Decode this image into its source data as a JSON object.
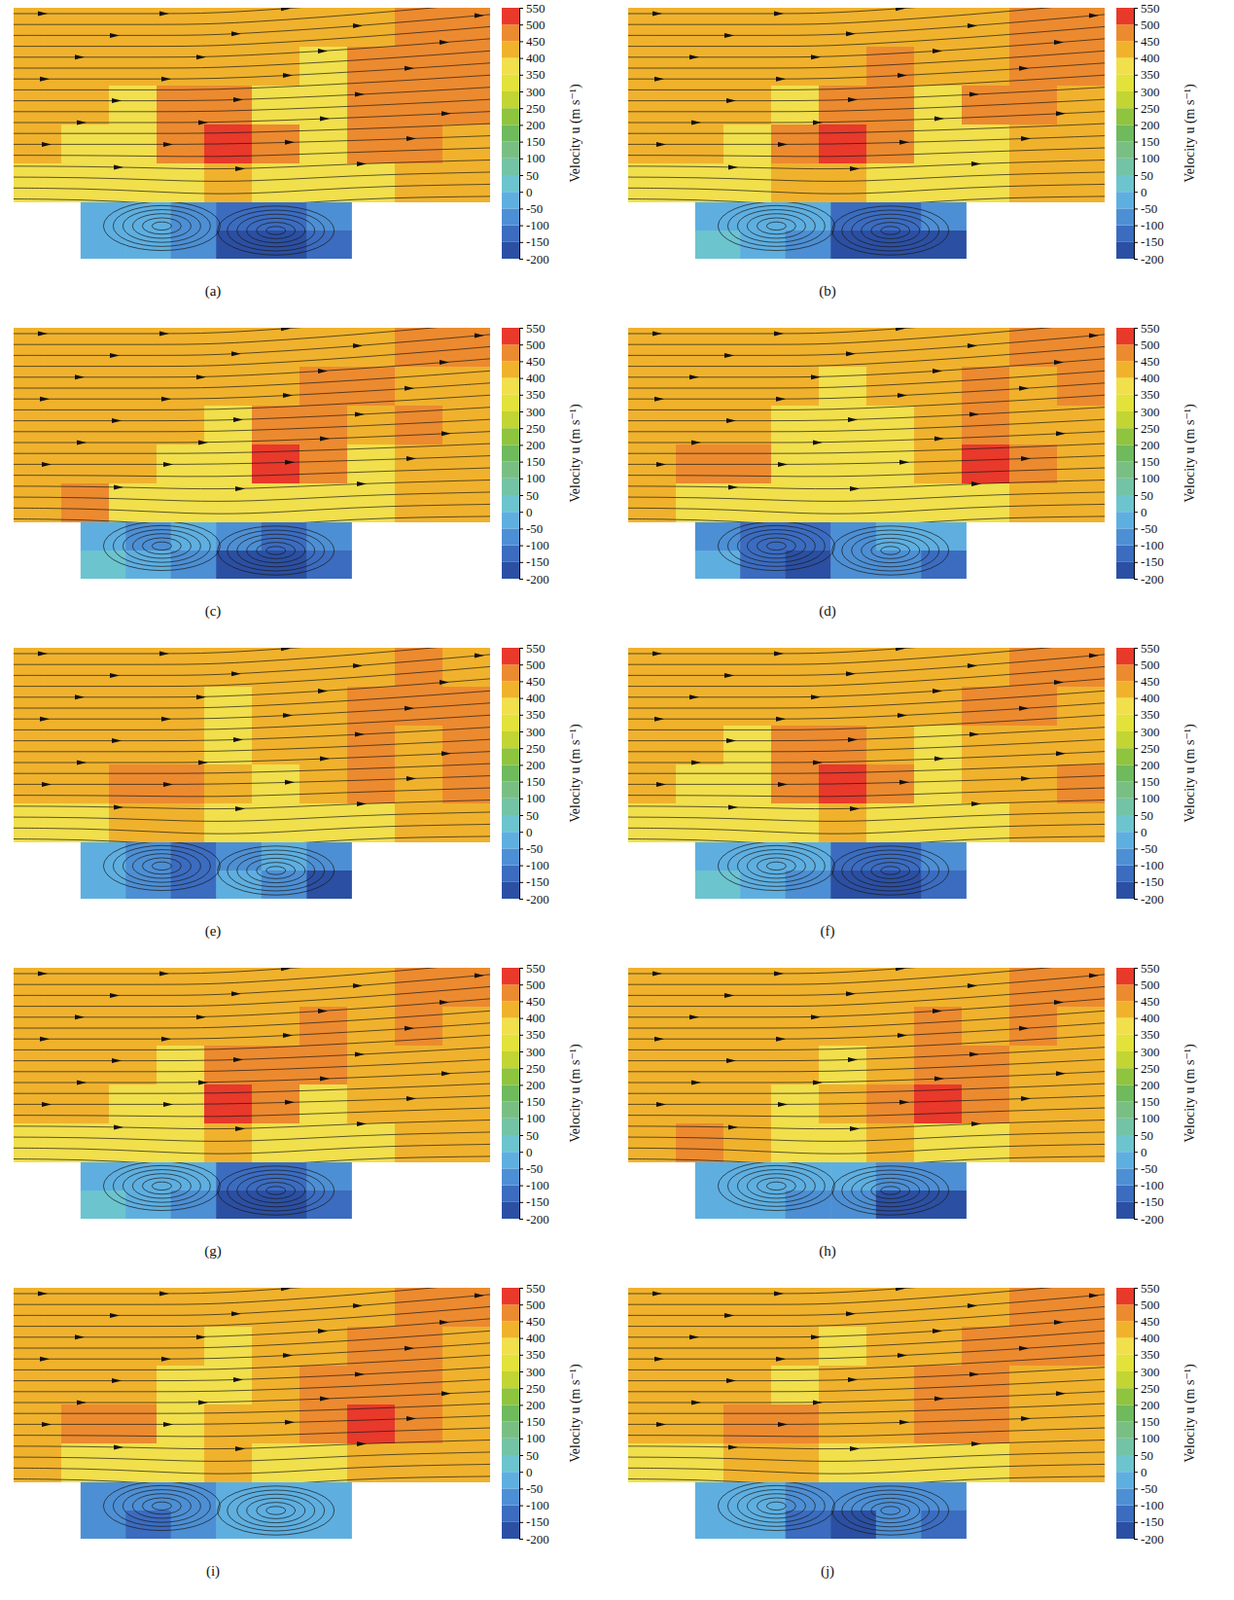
{
  "chart_data": [
    {
      "type": "heatmap",
      "title": "(a)",
      "colorbar_label": "Velocity u (m s⁻¹)",
      "colorbar_range": [
        -200,
        550
      ],
      "colorbar_ticks": [
        -200,
        -150,
        -100,
        -50,
        0,
        50,
        100,
        150,
        200,
        250,
        300,
        350,
        400,
        450,
        500,
        550
      ],
      "colors": [
        "#2b4fa2",
        "#3b6cc0",
        "#4d8fd4",
        "#5eafe0",
        "#6cc4cf",
        "#73c3a6",
        "#79bf84",
        "#6fba5c",
        "#8fc43e",
        "#c2d532",
        "#e2e23a",
        "#f1df4c",
        "#f0b22d",
        "#ec8a2f",
        "#e8392b"
      ],
      "channel_cells": [
        [
          430,
          430,
          430,
          430,
          430,
          430,
          430,
          440,
          470,
          470
        ],
        [
          430,
          430,
          430,
          430,
          430,
          430,
          380,
          470,
          470,
          470
        ],
        [
          430,
          430,
          380,
          460,
          470,
          380,
          380,
          470,
          480,
          470
        ],
        [
          430,
          380,
          380,
          470,
          520,
          470,
          380,
          460,
          470,
          430
        ],
        [
          380,
          370,
          360,
          380,
          420,
          380,
          360,
          380,
          400,
          400
        ]
      ],
      "cavity_cells": [
        [
          -20,
          -30,
          -60,
          -120,
          -130,
          -100
        ],
        [
          -10,
          -20,
          -80,
          -170,
          -180,
          -150
        ]
      ]
    },
    {
      "type": "heatmap",
      "title": "(b)",
      "colorbar_label": "Velocity u (m s⁻¹)",
      "colorbar_range": [
        -200,
        550
      ],
      "colorbar_ticks": [
        -200,
        -150,
        -100,
        -50,
        0,
        50,
        100,
        150,
        200,
        250,
        300,
        350,
        400,
        450,
        500,
        550
      ],
      "colors": [
        "#2b4fa2",
        "#3b6cc0",
        "#4d8fd4",
        "#5eafe0",
        "#6cc4cf",
        "#73c3a6",
        "#79bf84",
        "#6fba5c",
        "#8fc43e",
        "#c2d532",
        "#e2e23a",
        "#f1df4c",
        "#f0b22d",
        "#ec8a2f",
        "#e8392b"
      ],
      "channel_cells": [
        [
          430,
          430,
          430,
          430,
          430,
          430,
          430,
          430,
          450,
          470
        ],
        [
          430,
          430,
          430,
          430,
          430,
          460,
          430,
          430,
          470,
          470
        ],
        [
          430,
          430,
          430,
          380,
          470,
          470,
          380,
          470,
          470,
          430
        ],
        [
          430,
          430,
          380,
          470,
          520,
          470,
          380,
          380,
          430,
          430
        ],
        [
          380,
          380,
          360,
          400,
          400,
          380,
          360,
          380,
          400,
          400
        ]
      ],
      "cavity_cells": [
        [
          -20,
          -30,
          -50,
          -110,
          -130,
          -90
        ],
        [
          0,
          -20,
          -100,
          -180,
          -190,
          -160
        ]
      ]
    },
    {
      "type": "heatmap",
      "title": "(c)",
      "colorbar_label": "Velocity u (m s⁻¹)",
      "colorbar_range": [
        -200,
        550
      ],
      "colorbar_ticks": [
        -200,
        -150,
        -100,
        -50,
        0,
        50,
        100,
        150,
        200,
        250,
        300,
        350,
        400,
        450,
        500,
        550
      ],
      "colors": [
        "#2b4fa2",
        "#3b6cc0",
        "#4d8fd4",
        "#5eafe0",
        "#6cc4cf",
        "#73c3a6",
        "#79bf84",
        "#6fba5c",
        "#8fc43e",
        "#c2d532",
        "#e2e23a",
        "#f1df4c",
        "#f0b22d",
        "#ec8a2f",
        "#e8392b"
      ],
      "channel_cells": [
        [
          430,
          430,
          430,
          430,
          430,
          430,
          430,
          430,
          470,
          470
        ],
        [
          430,
          430,
          430,
          430,
          430,
          430,
          470,
          470,
          430,
          430
        ],
        [
          430,
          430,
          430,
          430,
          380,
          470,
          470,
          430,
          460,
          430
        ],
        [
          430,
          430,
          430,
          380,
          380,
          520,
          470,
          380,
          430,
          430
        ],
        [
          430,
          460,
          380,
          380,
          380,
          380,
          380,
          380,
          400,
          400
        ]
      ],
      "cavity_cells": [
        [
          -40,
          -70,
          -40,
          -60,
          -120,
          -80
        ],
        [
          0,
          -30,
          -80,
          -170,
          -190,
          -120
        ]
      ]
    },
    {
      "type": "heatmap",
      "title": "(d)",
      "colorbar_label": "Velocity u (m s⁻¹)",
      "colorbar_range": [
        -200,
        550
      ],
      "colorbar_ticks": [
        -200,
        -150,
        -100,
        -50,
        0,
        50,
        100,
        150,
        200,
        250,
        300,
        350,
        400,
        450,
        500,
        550
      ],
      "colors": [
        "#2b4fa2",
        "#3b6cc0",
        "#4d8fd4",
        "#5eafe0",
        "#6cc4cf",
        "#73c3a6",
        "#79bf84",
        "#6fba5c",
        "#8fc43e",
        "#c2d532",
        "#e2e23a",
        "#f1df4c",
        "#f0b22d",
        "#ec8a2f",
        "#e8392b"
      ],
      "channel_cells": [
        [
          430,
          430,
          430,
          430,
          430,
          430,
          430,
          440,
          470,
          470
        ],
        [
          430,
          430,
          430,
          430,
          380,
          430,
          430,
          470,
          430,
          470
        ],
        [
          430,
          430,
          430,
          380,
          380,
          380,
          430,
          470,
          430,
          430
        ],
        [
          430,
          470,
          470,
          380,
          370,
          380,
          440,
          520,
          460,
          430
        ],
        [
          400,
          380,
          380,
          370,
          380,
          380,
          380,
          380,
          400,
          400
        ]
      ],
      "cavity_cells": [
        [
          -60,
          -120,
          -110,
          -70,
          -40,
          -30
        ],
        [
          -40,
          -150,
          -170,
          -90,
          -60,
          -140
        ]
      ]
    },
    {
      "type": "heatmap",
      "title": "(e)",
      "colorbar_label": "Velocity u (m s⁻¹)",
      "colorbar_range": [
        -200,
        550
      ],
      "colorbar_ticks": [
        -200,
        -150,
        -100,
        -50,
        0,
        50,
        100,
        150,
        200,
        250,
        300,
        350,
        400,
        450,
        500,
        550
      ],
      "colors": [
        "#2b4fa2",
        "#3b6cc0",
        "#4d8fd4",
        "#5eafe0",
        "#6cc4cf",
        "#73c3a6",
        "#79bf84",
        "#6fba5c",
        "#8fc43e",
        "#c2d532",
        "#e2e23a",
        "#f1df4c",
        "#f0b22d",
        "#ec8a2f",
        "#e8392b"
      ],
      "channel_cells": [
        [
          430,
          430,
          430,
          430,
          430,
          430,
          430,
          430,
          470,
          430
        ],
        [
          430,
          430,
          430,
          430,
          380,
          430,
          430,
          470,
          470,
          470
        ],
        [
          430,
          430,
          430,
          430,
          380,
          430,
          430,
          470,
          430,
          470
        ],
        [
          430,
          430,
          460,
          470,
          430,
          380,
          430,
          470,
          440,
          470
        ],
        [
          380,
          380,
          400,
          400,
          380,
          360,
          370,
          380,
          400,
          400
        ]
      ],
      "cavity_cells": [
        [
          -40,
          -90,
          -110,
          -70,
          -30,
          -60
        ],
        [
          -20,
          -100,
          -140,
          -40,
          -60,
          -170
        ]
      ]
    },
    {
      "type": "heatmap",
      "title": "(f)",
      "colorbar_label": "Velocity u (m s⁻¹)",
      "colorbar_range": [
        -200,
        550
      ],
      "colorbar_ticks": [
        -200,
        -150,
        -100,
        -50,
        0,
        50,
        100,
        150,
        200,
        250,
        300,
        350,
        400,
        450,
        500,
        550
      ],
      "colors": [
        "#2b4fa2",
        "#3b6cc0",
        "#4d8fd4",
        "#5eafe0",
        "#6cc4cf",
        "#73c3a6",
        "#79bf84",
        "#6fba5c",
        "#8fc43e",
        "#c2d532",
        "#e2e23a",
        "#f1df4c",
        "#f0b22d",
        "#ec8a2f",
        "#e8392b"
      ],
      "channel_cells": [
        [
          430,
          430,
          430,
          430,
          430,
          430,
          430,
          430,
          460,
          470
        ],
        [
          430,
          430,
          430,
          430,
          430,
          430,
          430,
          470,
          470,
          430
        ],
        [
          430,
          430,
          380,
          460,
          470,
          430,
          380,
          430,
          430,
          430
        ],
        [
          430,
          380,
          380,
          470,
          520,
          470,
          380,
          430,
          430,
          460
        ],
        [
          380,
          370,
          370,
          380,
          420,
          380,
          360,
          380,
          400,
          400
        ]
      ],
      "cavity_cells": [
        [
          -10,
          -20,
          -40,
          -110,
          -130,
          -90
        ],
        [
          0,
          -10,
          -100,
          -180,
          -180,
          -150
        ]
      ]
    },
    {
      "type": "heatmap",
      "title": "(g)",
      "colorbar_label": "Velocity u (m s⁻¹)",
      "colorbar_range": [
        -200,
        550
      ],
      "colorbar_ticks": [
        -200,
        -150,
        -100,
        -50,
        0,
        50,
        100,
        150,
        200,
        250,
        300,
        350,
        400,
        450,
        500,
        550
      ],
      "colors": [
        "#2b4fa2",
        "#3b6cc0",
        "#4d8fd4",
        "#5eafe0",
        "#6cc4cf",
        "#73c3a6",
        "#79bf84",
        "#6fba5c",
        "#8fc43e",
        "#c2d532",
        "#e2e23a",
        "#f1df4c",
        "#f0b22d",
        "#ec8a2f",
        "#e8392b"
      ],
      "channel_cells": [
        [
          430,
          430,
          430,
          430,
          430,
          430,
          430,
          430,
          450,
          470
        ],
        [
          430,
          430,
          430,
          430,
          430,
          430,
          470,
          430,
          470,
          430
        ],
        [
          430,
          430,
          430,
          380,
          470,
          470,
          470,
          430,
          430,
          430
        ],
        [
          430,
          430,
          380,
          380,
          520,
          470,
          380,
          430,
          430,
          430
        ],
        [
          380,
          380,
          370,
          380,
          400,
          380,
          370,
          380,
          400,
          400
        ]
      ],
      "cavity_cells": [
        [
          -20,
          -20,
          -50,
          -110,
          -120,
          -100
        ],
        [
          0,
          -10,
          -90,
          -170,
          -190,
          -150
        ]
      ]
    },
    {
      "type": "heatmap",
      "title": "(h)",
      "colorbar_label": "Velocity u (m s⁻¹)",
      "colorbar_range": [
        -200,
        550
      ],
      "colorbar_ticks": [
        -200,
        -150,
        -100,
        -50,
        0,
        50,
        100,
        150,
        200,
        250,
        300,
        350,
        400,
        450,
        500,
        550
      ],
      "colors": [
        "#2b4fa2",
        "#3b6cc0",
        "#4d8fd4",
        "#5eafe0",
        "#6cc4cf",
        "#73c3a6",
        "#79bf84",
        "#6fba5c",
        "#8fc43e",
        "#c2d532",
        "#e2e23a",
        "#f1df4c",
        "#f0b22d",
        "#ec8a2f",
        "#e8392b"
      ],
      "channel_cells": [
        [
          430,
          430,
          430,
          430,
          430,
          430,
          430,
          430,
          450,
          470
        ],
        [
          430,
          430,
          430,
          430,
          430,
          430,
          470,
          430,
          470,
          430
        ],
        [
          430,
          430,
          430,
          430,
          380,
          430,
          470,
          470,
          430,
          430
        ],
        [
          430,
          430,
          430,
          380,
          430,
          470,
          520,
          470,
          430,
          430
        ],
        [
          430,
          460,
          400,
          380,
          380,
          400,
          380,
          380,
          400,
          400
        ]
      ],
      "cavity_cells": [
        [
          -50,
          -40,
          -40,
          -30,
          -60,
          -70
        ],
        [
          -30,
          -50,
          -60,
          -90,
          -170,
          -160
        ]
      ]
    },
    {
      "type": "heatmap",
      "title": "(i)",
      "colorbar_label": "Velocity u (m s⁻¹)",
      "colorbar_range": [
        -200,
        550
      ],
      "colorbar_ticks": [
        -200,
        -150,
        -100,
        -50,
        0,
        50,
        100,
        150,
        200,
        250,
        300,
        350,
        400,
        450,
        500,
        550
      ],
      "colors": [
        "#2b4fa2",
        "#3b6cc0",
        "#4d8fd4",
        "#5eafe0",
        "#6cc4cf",
        "#73c3a6",
        "#79bf84",
        "#6fba5c",
        "#8fc43e",
        "#c2d532",
        "#e2e23a",
        "#f1df4c",
        "#f0b22d",
        "#ec8a2f",
        "#e8392b"
      ],
      "channel_cells": [
        [
          430,
          430,
          430,
          430,
          430,
          430,
          430,
          430,
          470,
          470
        ],
        [
          430,
          430,
          430,
          430,
          380,
          430,
          430,
          470,
          470,
          430
        ],
        [
          430,
          430,
          430,
          380,
          380,
          430,
          470,
          470,
          470,
          430
        ],
        [
          430,
          460,
          470,
          380,
          430,
          430,
          470,
          520,
          470,
          430
        ],
        [
          400,
          380,
          380,
          380,
          400,
          380,
          380,
          400,
          400,
          400
        ]
      ],
      "cavity_cells": [
        [
          -70,
          -100,
          -80,
          -40,
          -20,
          -10
        ],
        [
          -60,
          -120,
          -60,
          -30,
          -20,
          -40
        ]
      ]
    },
    {
      "type": "heatmap",
      "title": "(j)",
      "colorbar_label": "Velocity u (m s⁻¹)",
      "colorbar_range": [
        -200,
        550
      ],
      "colorbar_ticks": [
        -200,
        -150,
        -100,
        -50,
        0,
        50,
        100,
        150,
        200,
        250,
        300,
        350,
        400,
        450,
        500,
        550
      ],
      "colors": [
        "#2b4fa2",
        "#3b6cc0",
        "#4d8fd4",
        "#5eafe0",
        "#6cc4cf",
        "#73c3a6",
        "#79bf84",
        "#6fba5c",
        "#8fc43e",
        "#c2d532",
        "#e2e23a",
        "#f1df4c",
        "#f0b22d",
        "#ec8a2f",
        "#e8392b"
      ],
      "channel_cells": [
        [
          430,
          430,
          430,
          430,
          430,
          430,
          430,
          430,
          460,
          470
        ],
        [
          430,
          430,
          430,
          430,
          380,
          430,
          430,
          470,
          470,
          470
        ],
        [
          430,
          430,
          430,
          380,
          430,
          430,
          470,
          470,
          430,
          430
        ],
        [
          430,
          430,
          470,
          490,
          430,
          430,
          470,
          470,
          430,
          430
        ],
        [
          380,
          380,
          400,
          400,
          380,
          380,
          380,
          380,
          400,
          400
        ]
      ],
      "cavity_cells": [
        [
          -20,
          -30,
          -80,
          -100,
          -70,
          -60
        ],
        [
          -10,
          -40,
          -120,
          -160,
          -100,
          -130
        ]
      ]
    }
  ]
}
